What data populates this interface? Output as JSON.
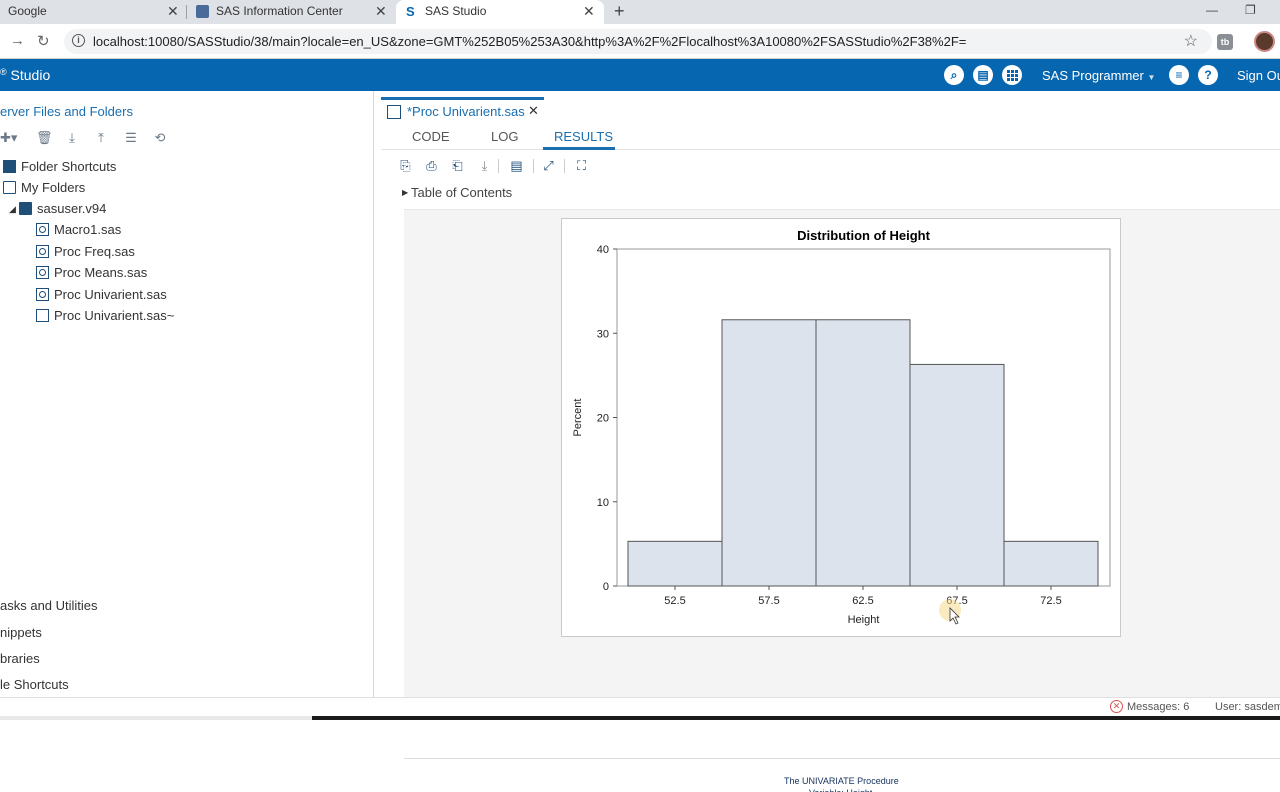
{
  "browser": {
    "tabs": [
      {
        "label": "Google",
        "active": false
      },
      {
        "label": "SAS Information Center",
        "active": false
      },
      {
        "label": "SAS Studio",
        "active": true
      }
    ],
    "url": "localhost:10080/SASStudio/38/main?locale=en_US&zone=GMT%252B05%253A30&http%3A%2F%2Flocalhost%3A10080%2FSASStudio%2F38%2F="
  },
  "app": {
    "title": "Studio",
    "user_role": "SAS Programmer",
    "sign_out": "Sign Ou",
    "accent": "#0766b0"
  },
  "left_pane": {
    "title": "erver Files and Folders",
    "tree": {
      "folder_shortcuts": "Folder Shortcuts",
      "my_folders": "My Folders",
      "user_folder": "sasuser.v94",
      "files": [
        "Macro1.sas",
        "Proc Freq.sas",
        "Proc Means.sas",
        "Proc Univarient.sas",
        "Proc Univarient.sas~"
      ]
    },
    "sections": [
      "asks and Utilities",
      "nippets",
      "braries",
      "le Shortcuts"
    ]
  },
  "editor": {
    "tab_label": "*Proc Univarient.sas",
    "subtabs": [
      "CODE",
      "LOG",
      "RESULTS"
    ],
    "active_subtab": "RESULTS",
    "toc_label": "Table of Contents",
    "proc_title": "The UNIVARIATE Procedure",
    "proc_subtitle": "Variable: Height"
  },
  "status": {
    "messages": "Messages: 6",
    "user": "User: sasdem"
  },
  "chart_data": {
    "type": "bar",
    "title": "Distribution of Height",
    "xlabel": "Height",
    "ylabel": "Percent",
    "categories": [
      "52.5",
      "57.5",
      "62.5",
      "67.5",
      "72.5"
    ],
    "values": [
      5.3,
      31.6,
      31.6,
      26.3,
      5.3
    ],
    "ylim": [
      0,
      40
    ],
    "yticks": [
      0,
      10,
      20,
      30,
      40
    ],
    "bar_color": "#dde3ec",
    "grid": false
  }
}
